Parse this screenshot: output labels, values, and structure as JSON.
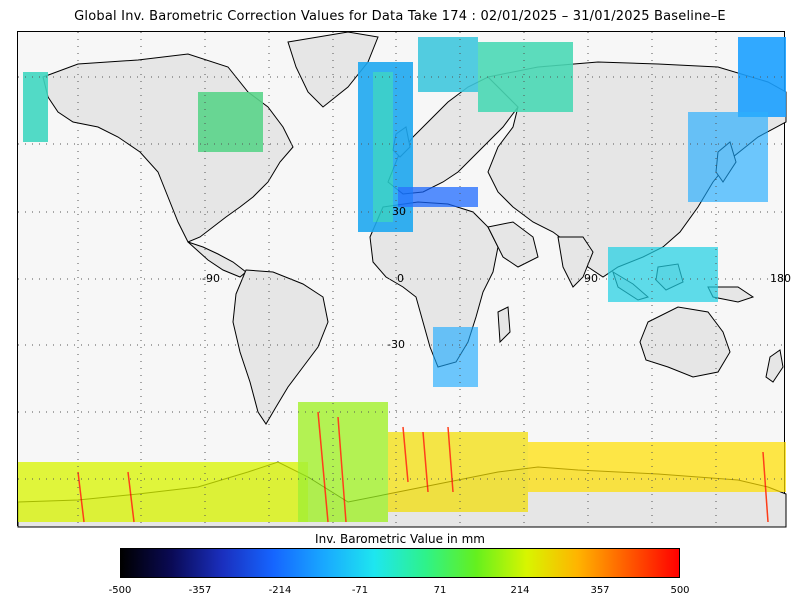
{
  "title": "Global Inv. Barometric Correction Values for Data Take 174 : 02/01/2025 – 31/01/2025 Baseline–E",
  "map": {
    "lat_labels": [
      "30",
      "-30"
    ],
    "lon_labels": [
      "-90",
      "0",
      "90",
      "180"
    ],
    "grid": "dotted"
  },
  "colorbar": {
    "title": "Inv. Barometric Value in mm",
    "ticks": [
      "-500",
      "-357",
      "-214",
      "-71",
      "71",
      "214",
      "357",
      "500"
    ],
    "stops": [
      "#000000",
      "#0a0a55",
      "#1a2fbe",
      "#1565ff",
      "#19a8ff",
      "#1ee6ef",
      "#2ef28a",
      "#64f01e",
      "#d8f500",
      "#ffb400",
      "#ff5a00",
      "#ff0000"
    ]
  }
}
